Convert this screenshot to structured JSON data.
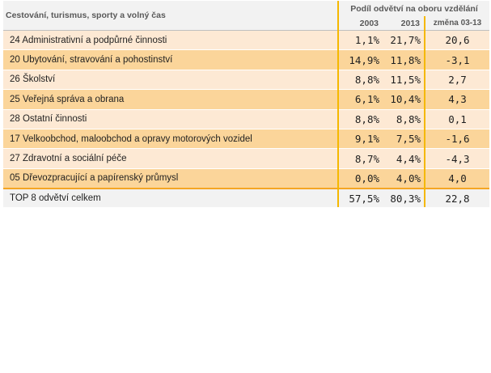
{
  "header": {
    "title": "Cestování, turismus, sporty a volný čas",
    "group_label": "Podíl odvětví na oboru vzdělání",
    "col_year1": "2003",
    "col_year2": "2013",
    "col_change": "změna 03-13"
  },
  "rows": [
    {
      "label": "24 Administrativní a podpůrné činnosti",
      "v2003": "1,1%",
      "v2013": "21,7%",
      "change": "20,6"
    },
    {
      "label": "20 Ubytování, stravování a pohostinství",
      "v2003": "14,9%",
      "v2013": "11,8%",
      "change": "-3,1"
    },
    {
      "label": "26 Školství",
      "v2003": "8,8%",
      "v2013": "11,5%",
      "change": "2,7"
    },
    {
      "label": "25 Veřejná správa a obrana",
      "v2003": "6,1%",
      "v2013": "10,4%",
      "change": "4,3"
    },
    {
      "label": "28 Ostatní činnosti",
      "v2003": "8,8%",
      "v2013": "8,8%",
      "change": "0,1"
    },
    {
      "label": "17 Velkoobchod, maloobchod a opravy motorových vozidel",
      "v2003": "9,1%",
      "v2013": "7,5%",
      "change": "-1,6"
    },
    {
      "label": "27 Zdravotní a sociální péče",
      "v2003": "8,7%",
      "v2013": "4,4%",
      "change": "-4,3"
    },
    {
      "label": "05 Dřevozpracující a papírenský průmysl",
      "v2003": "0,0%",
      "v2013": "4,0%",
      "change": "4,0"
    }
  ],
  "total": {
    "label": "TOP 8 odvětví celkem",
    "v2003": "57,5%",
    "v2013": "80,3%",
    "change": "22,8"
  },
  "colors": {
    "row_light": "#fde9d4",
    "row_dark": "#fbd59a",
    "header_bg": "#f2f2f2",
    "accent_line": "#f5b800"
  }
}
